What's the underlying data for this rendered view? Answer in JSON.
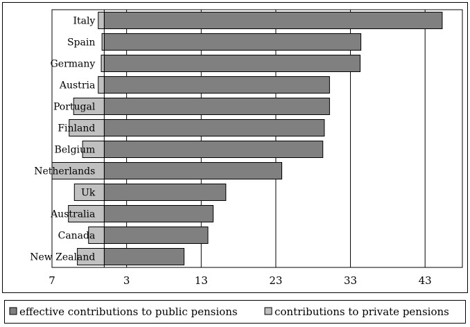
{
  "chart_data": {
    "type": "bar",
    "orientation": "horizontal",
    "stacking": "diverging from zero",
    "title": "",
    "xlabel": "",
    "ylabel": "",
    "categories": [
      "Italy",
      "Spain",
      "Germany",
      "Austria",
      "Portugal",
      "Finland",
      "Belgium",
      "Netherlands",
      "Uk",
      "Australia",
      "Canada",
      "New Zealand"
    ],
    "series": [
      {
        "name": "effective contributions to public pensions",
        "color": "#808080",
        "direction": "right",
        "values": [
          45.3,
          34.4,
          34.3,
          30.2,
          30.2,
          29.5,
          29.3,
          23.8,
          16.3,
          14.6,
          13.9,
          10.7
        ]
      },
      {
        "name": "contributions to private pensions",
        "color": "#c0c0c0",
        "direction": "left",
        "values": [
          0.8,
          0.3,
          0.4,
          0.8,
          4.1,
          4.7,
          2.9,
          7.0,
          4.0,
          4.8,
          2.1,
          3.6
        ]
      }
    ],
    "x_ticks": [
      "7",
      "3",
      "13",
      "23",
      "33",
      "43"
    ],
    "xlim": [
      -7,
      48
    ],
    "grid": "vertical gridlines at each tick",
    "legend": "bottom, separate box"
  }
}
